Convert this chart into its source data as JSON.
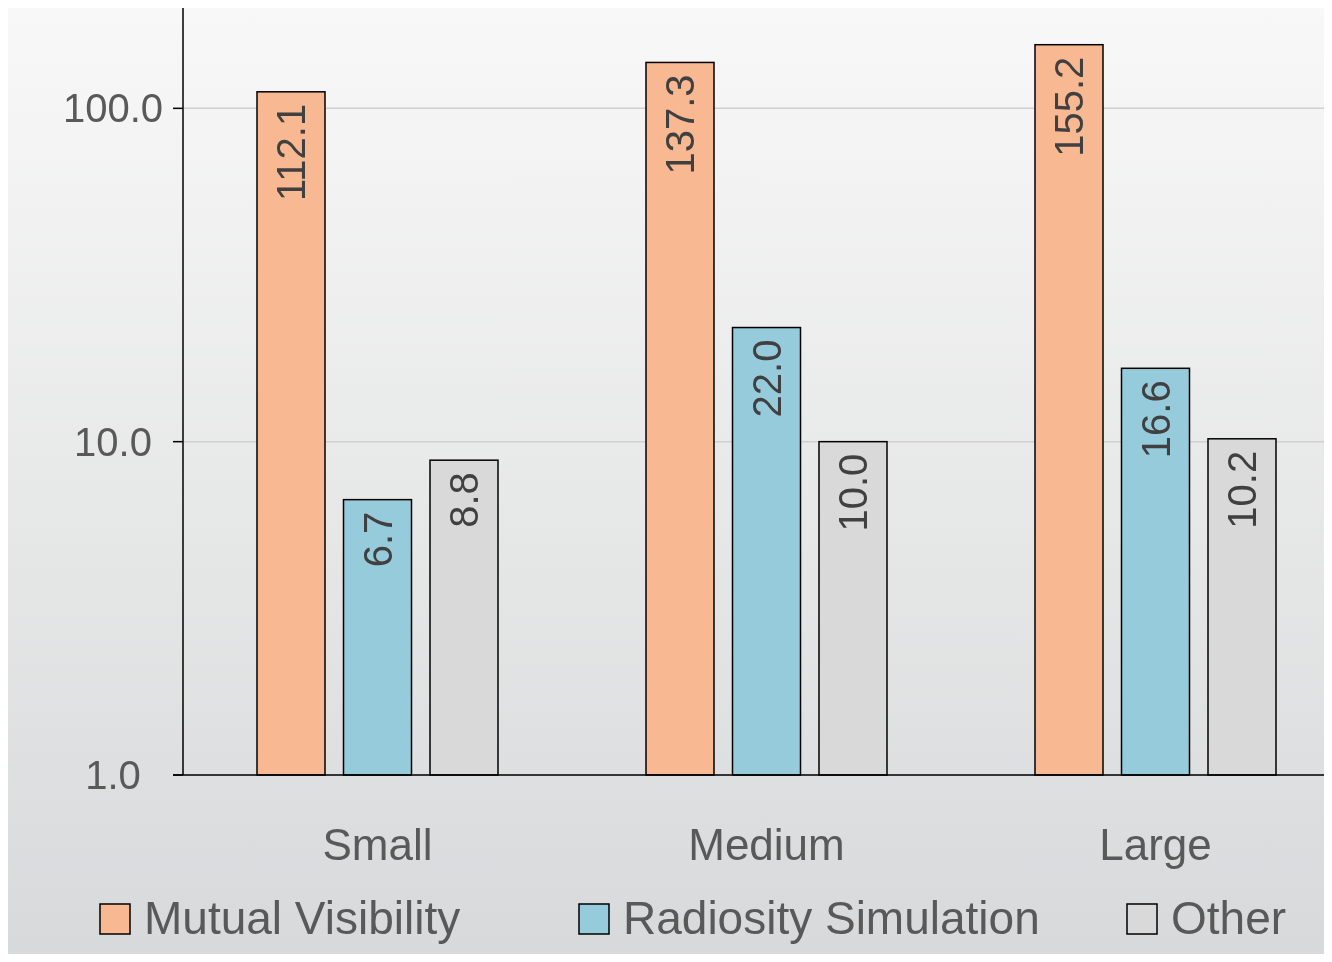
{
  "chart_data": {
    "type": "bar",
    "categories": [
      "Small",
      "Medium",
      "Large"
    ],
    "series": [
      {
        "name": "Mutual Visibility",
        "color": "#f8b891",
        "values": [
          112.1,
          137.3,
          155.2
        ],
        "value_labels": [
          "112.1",
          "137.3",
          "155.2"
        ]
      },
      {
        "name": "Radiosity Simulation",
        "color": "#95cbdb",
        "values": [
          6.7,
          22.0,
          16.6
        ],
        "value_labels": [
          "6.7",
          "22.0",
          "16.6"
        ]
      },
      {
        "name": "Other",
        "color": "#d9d9d9",
        "values": [
          8.8,
          10.0,
          10.2
        ],
        "value_labels": [
          "8.8",
          "10.0",
          "10.2"
        ]
      }
    ],
    "log": true,
    "ylim": [
      1,
      200
    ],
    "yticks": [
      {
        "value": 1,
        "label": "1.0"
      },
      {
        "value": 10,
        "label": "10.0"
      },
      {
        "value": 100,
        "label": "100.0"
      }
    ],
    "grid": "y",
    "legend": "bottom"
  }
}
